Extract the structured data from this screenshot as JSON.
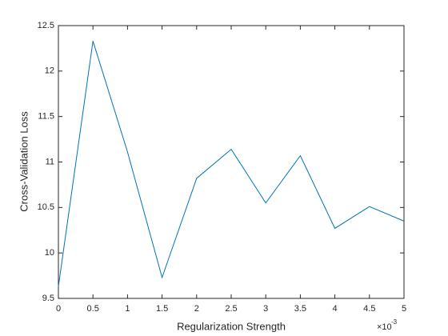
{
  "chart_data": {
    "type": "line",
    "x_label": "Regularization Strength",
    "y_label": "Cross-Validation Loss",
    "x_multiplier": {
      "base": "×10",
      "exponent": "-3"
    },
    "x": [
      0,
      0.5,
      1,
      1.5,
      2,
      2.5,
      3,
      3.5,
      4,
      4.5,
      5
    ],
    "values": [
      9.63,
      12.33,
      11.11,
      9.73,
      10.82,
      11.14,
      10.55,
      11.07,
      10.27,
      10.51,
      10.35
    ],
    "color": "#0072bd",
    "xlim": [
      0,
      5
    ],
    "xticks": [
      0,
      0.5,
      1,
      1.5,
      2,
      2.5,
      3,
      3.5,
      4,
      4.5,
      5
    ],
    "ylim": [
      9.5,
      12.5
    ],
    "yticks": [
      9.5,
      10,
      10.5,
      11,
      11.5,
      12,
      12.5
    ],
    "grid": false
  }
}
